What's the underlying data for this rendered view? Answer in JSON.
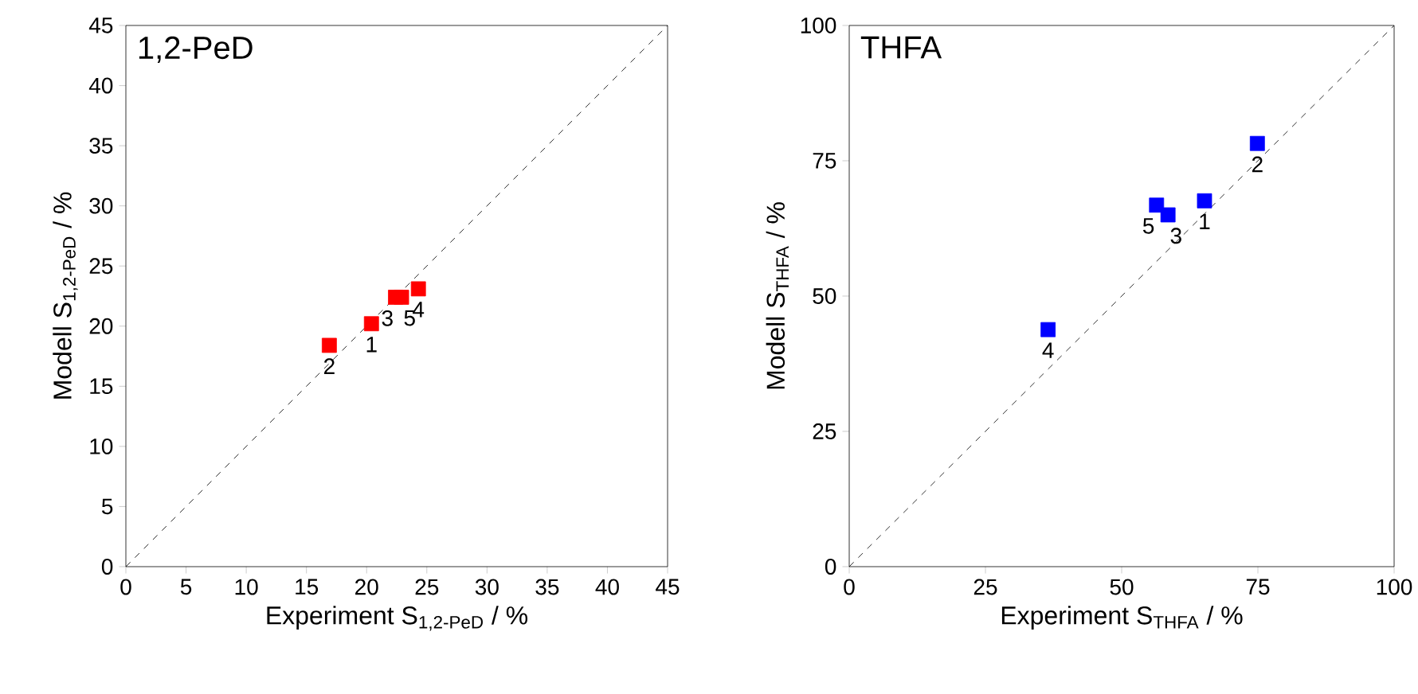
{
  "chart_data": [
    {
      "type": "scatter",
      "title": "1,2-PeD",
      "xlabel": "Experiment S$_{1,2-PeD}$ / %",
      "ylabel": "Modell S$_{1,2-PeD}$ / %",
      "xlim": [
        0,
        45
      ],
      "ylim": [
        0,
        45
      ],
      "xticks": [
        0,
        5,
        10,
        15,
        20,
        25,
        30,
        35,
        40,
        45
      ],
      "yticks": [
        0,
        5,
        10,
        15,
        20,
        25,
        30,
        35,
        40,
        45
      ],
      "marker": "square",
      "series": [
        {
          "color": "#ff0000",
          "x": [
            20.4,
            16.9,
            22.4,
            24.3,
            22.9
          ],
          "values": [
            20.2,
            18.4,
            22.4,
            23.1,
            22.4
          ]
        },
        {
          "type": "line",
          "color": "#000000",
          "line_style": "dashed",
          "marker": "none",
          "x": [
            0,
            45
          ],
          "values": [
            0,
            45
          ]
        }
      ],
      "annotations": [
        {
          "text": "1",
          "x": 20.4,
          "y": 20.2
        },
        {
          "text": "2",
          "x": 16.9,
          "y": 18.4
        },
        {
          "text": "3",
          "x": 22.4,
          "y": 22.4
        },
        {
          "text": "4",
          "x": 24.3,
          "y": 23.1
        },
        {
          "text": "5",
          "x": 22.9,
          "y": 22.4
        }
      ]
    },
    {
      "type": "scatter",
      "title": "THFA",
      "xlabel": "Experiment S$_{THFA}$ / %",
      "ylabel": "Modell S$_{THFA}$ / %",
      "xlim": [
        0,
        100
      ],
      "ylim": [
        0,
        100
      ],
      "xticks": [
        0,
        25,
        50,
        75,
        100
      ],
      "yticks": [
        0,
        25,
        50,
        75,
        100
      ],
      "marker": "square",
      "series": [
        {
          "color": "#0000ff",
          "x": [
            65.2,
            74.9,
            58.5,
            36.5,
            56.4
          ],
          "values": [
            67.6,
            78.2,
            65.0,
            43.8,
            66.8
          ]
        },
        {
          "type": "line",
          "color": "#000000",
          "line_style": "dashed",
          "marker": "none",
          "x": [
            0,
            100
          ],
          "values": [
            0,
            100
          ]
        }
      ],
      "annotations": [
        {
          "text": "1",
          "x": 65.2,
          "y": 67.6
        },
        {
          "text": "2",
          "x": 74.9,
          "y": 78.2
        },
        {
          "text": "3",
          "x": 58.5,
          "y": 65.0
        },
        {
          "text": "4",
          "x": 36.5,
          "y": 43.8
        },
        {
          "text": "5",
          "x": 56.4,
          "y": 66.8
        }
      ]
    }
  ]
}
